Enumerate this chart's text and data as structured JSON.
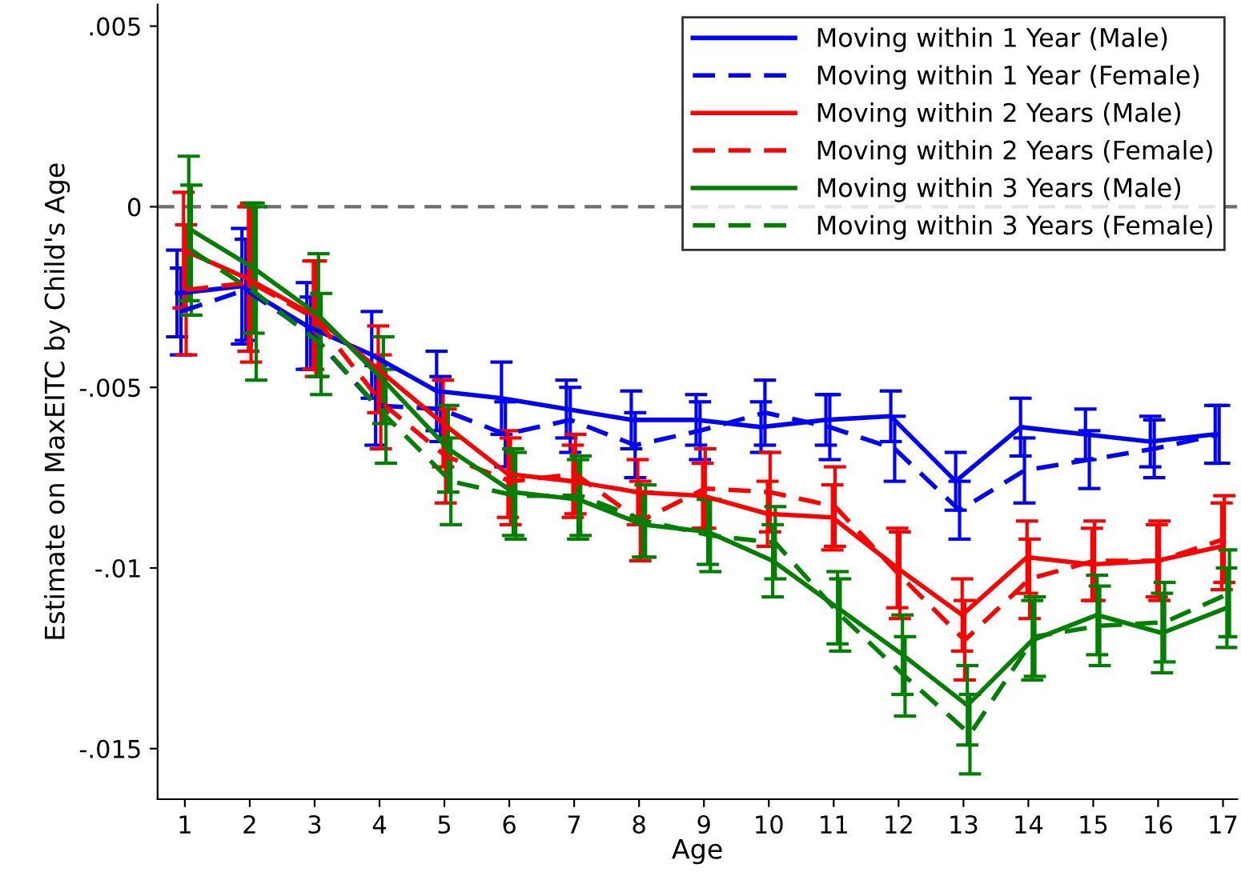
{
  "chart_data": {
    "type": "line",
    "xlabel": "Age",
    "ylabel": "Estimate on MaxEITC by Child's Age",
    "xlim": [
      0.58,
      17.22
    ],
    "xticks": [
      1,
      2,
      3,
      4,
      5,
      6,
      7,
      8,
      9,
      10,
      11,
      12,
      13,
      14,
      15,
      16,
      17
    ],
    "ylim": [
      -0.0164,
      0.0056
    ],
    "yticks": [
      {
        "value": 0.005,
        "label": ".005"
      },
      0,
      {
        "value": -0.005,
        "label": "-.005"
      },
      {
        "value": -0.01,
        "label": "-.01"
      },
      {
        "value": -0.015,
        "label": "-.015"
      }
    ],
    "grid": false,
    "legend": "top right",
    "marker": "none",
    "ref_lines": [
      {
        "axis": "y",
        "value": 0,
        "color": "#6e6e6e",
        "line_style": "dashed"
      }
    ],
    "series": [
      {
        "name": "Moving within 1 Year (Male)",
        "color": "#0000ff",
        "line_style": "solid",
        "x": [
          0.88,
          1.88,
          2.88,
          3.88,
          4.88,
          5.88,
          6.88,
          7.88,
          8.88,
          9.88,
          10.88,
          11.88,
          12.88,
          13.88,
          14.88,
          15.88,
          16.88
        ],
        "values": [
          -0.0024,
          -0.0022,
          -0.0033,
          -0.0041,
          -0.0051,
          -0.0053,
          -0.0056,
          -0.0059,
          -0.0059,
          -0.0061,
          -0.0059,
          -0.0058,
          -0.0076,
          -0.0061,
          -0.0063,
          -0.0065,
          -0.0063
        ],
        "errors": [
          0.0012,
          0.0016,
          0.0012,
          0.0012,
          0.0011,
          0.001,
          0.0008,
          0.0008,
          0.0007,
          0.0007,
          0.0007,
          0.0007,
          0.0008,
          0.0008,
          0.0007,
          0.0007,
          0.0008
        ]
      },
      {
        "name": "Moving within 1 Year (Female)",
        "color": "#0000ff",
        "line_style": "dashed",
        "x": [
          0.94,
          1.94,
          2.94,
          3.94,
          4.94,
          5.94,
          6.94,
          7.94,
          8.94,
          9.94,
          10.94,
          11.94,
          12.94,
          13.94,
          14.94,
          15.94,
          16.94
        ],
        "values": [
          -0.0029,
          -0.0023,
          -0.0035,
          -0.0055,
          -0.0056,
          -0.0063,
          -0.0059,
          -0.0066,
          -0.0062,
          -0.0057,
          -0.0061,
          -0.0067,
          -0.0084,
          -0.0073,
          -0.007,
          -0.0067,
          -0.0063
        ],
        "errors": [
          0.0012,
          0.0014,
          0.001,
          0.0011,
          0.0009,
          0.0009,
          0.0009,
          0.0009,
          0.0008,
          0.0009,
          0.0009,
          0.0009,
          0.0008,
          0.0009,
          0.0008,
          0.0008,
          0.0008
        ]
      },
      {
        "name": "Moving within 2 Years (Male)",
        "color": "#ff0000",
        "line_style": "solid",
        "x": [
          0.98,
          1.98,
          2.98,
          3.98,
          4.98,
          5.98,
          6.98,
          7.98,
          8.98,
          9.98,
          10.98,
          11.98,
          12.98,
          13.98,
          14.98,
          15.98,
          16.98
        ],
        "values": [
          -0.0012,
          -0.002,
          -0.003,
          -0.0045,
          -0.006,
          -0.0074,
          -0.0076,
          -0.0079,
          -0.008,
          -0.0085,
          -0.0086,
          -0.01,
          -0.0113,
          -0.0097,
          -0.0099,
          -0.0098,
          -0.0094
        ],
        "errors": [
          0.0016,
          0.002,
          0.0015,
          0.0012,
          0.0012,
          0.0012,
          0.001,
          0.0009,
          0.0009,
          0.0009,
          0.0009,
          0.0011,
          0.001,
          0.001,
          0.001,
          0.001,
          0.0012
        ]
      },
      {
        "name": "Moving within 2 Years (Female)",
        "color": "#ff0000",
        "line_style": "dashed",
        "x": [
          1.02,
          2.02,
          3.02,
          4.02,
          5.02,
          6.02,
          7.02,
          8.02,
          9.02,
          10.02,
          11.02,
          12.02,
          13.02,
          14.02,
          15.02,
          16.02,
          17.02
        ],
        "values": [
          -0.0023,
          -0.0021,
          -0.0031,
          -0.0054,
          -0.0069,
          -0.0076,
          -0.0074,
          -0.0087,
          -0.0078,
          -0.0079,
          -0.0083,
          -0.0102,
          -0.012,
          -0.0103,
          -0.0098,
          -0.0098,
          -0.0092
        ],
        "errors": [
          0.0018,
          0.0022,
          0.0016,
          0.0013,
          0.0013,
          0.0012,
          0.0011,
          0.0011,
          0.0011,
          0.0011,
          0.0011,
          0.0012,
          0.0011,
          0.0011,
          0.0011,
          0.0011,
          0.0012
        ]
      },
      {
        "name": "Moving within 3 Years (Male)",
        "color": "#008000",
        "line_style": "solid",
        "x": [
          1.06,
          2.06,
          3.06,
          4.06,
          5.06,
          6.06,
          7.06,
          8.06,
          9.06,
          10.06,
          11.06,
          12.06,
          13.06,
          14.06,
          15.06,
          16.06,
          17.06
        ],
        "values": [
          -0.0006,
          -0.0017,
          -0.003,
          -0.0048,
          -0.0067,
          -0.0079,
          -0.0081,
          -0.0088,
          -0.009,
          -0.0098,
          -0.0111,
          -0.0124,
          -0.0138,
          -0.012,
          -0.0113,
          -0.0118,
          -0.0111
        ],
        "errors": [
          0.002,
          0.0018,
          0.0017,
          0.0012,
          0.0012,
          0.0012,
          0.0011,
          0.0009,
          0.0009,
          0.001,
          0.001,
          0.0011,
          0.0011,
          0.0011,
          0.0011,
          0.0011,
          0.0011
        ]
      },
      {
        "name": "Moving within 3 Years (Female)",
        "color": "#008000",
        "line_style": "dashed",
        "x": [
          1.1,
          2.1,
          3.1,
          4.1,
          5.1,
          6.1,
          7.1,
          8.1,
          9.1,
          10.1,
          11.1,
          12.1,
          13.1,
          14.1,
          15.1,
          16.1,
          17.1
        ],
        "values": [
          -0.0012,
          -0.0024,
          -0.0038,
          -0.0058,
          -0.0076,
          -0.008,
          -0.008,
          -0.0087,
          -0.0091,
          -0.0093,
          -0.0113,
          -0.013,
          -0.0146,
          -0.0119,
          -0.0116,
          -0.0115,
          -0.0107
        ],
        "errors": [
          0.0018,
          0.0024,
          0.0014,
          0.0013,
          0.0012,
          0.0012,
          0.0011,
          0.001,
          0.001,
          0.001,
          0.001,
          0.0011,
          0.0011,
          0.0011,
          0.0011,
          0.0011,
          0.0012
        ]
      }
    ]
  }
}
